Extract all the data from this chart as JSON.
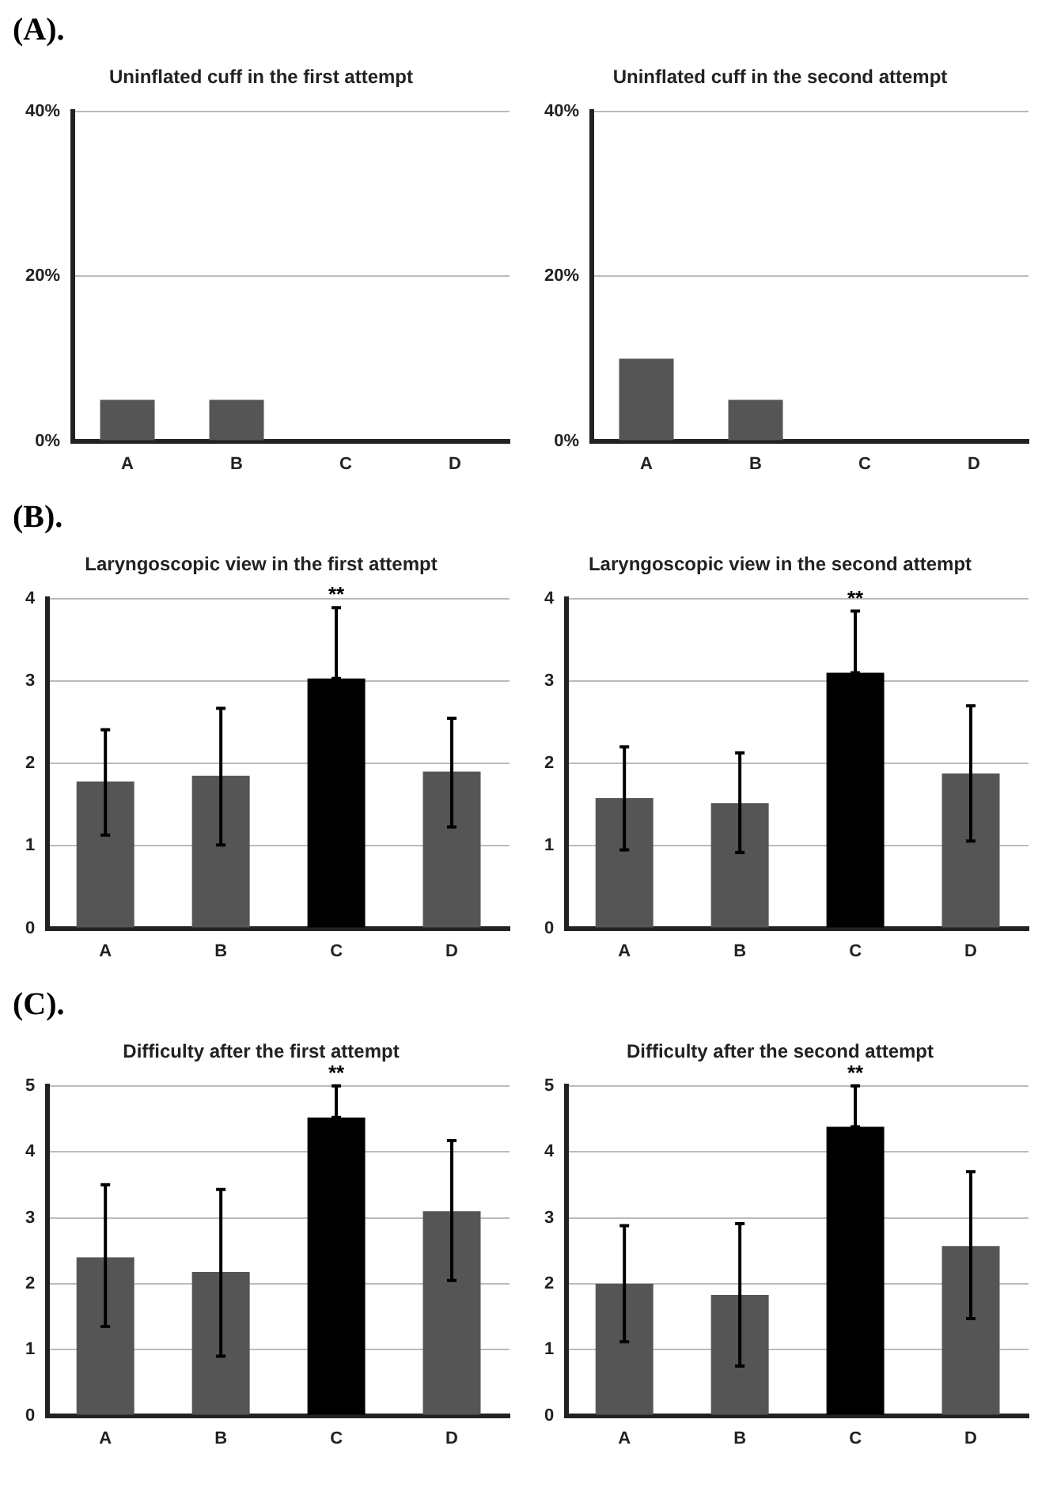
{
  "chart_data": [
    {
      "type": "bar",
      "title": "Uninflated cuff in the first attempt",
      "annotations": [
        "(A)."
      ],
      "categories": [
        "A",
        "B",
        "C",
        "D"
      ],
      "values": [
        5,
        5,
        0,
        0
      ],
      "color": "#555555",
      "ylim": [
        0,
        40
      ],
      "yticks": [
        {
          "value": 0,
          "label": "0%"
        },
        {
          "value": 20,
          "label": "20%"
        },
        {
          "value": 40,
          "label": "40%"
        }
      ],
      "grid": "y"
    },
    {
      "type": "bar",
      "title": "Uninflated cuff in the second attempt",
      "categories": [
        "A",
        "B",
        "C",
        "D"
      ],
      "values": [
        10,
        5,
        0,
        0
      ],
      "color": "#555555",
      "ylim": [
        0,
        40
      ],
      "yticks": [
        {
          "value": 0,
          "label": "0%"
        },
        {
          "value": 20,
          "label": "20%"
        },
        {
          "value": 40,
          "label": "40%"
        }
      ],
      "grid": "y"
    },
    {
      "type": "bar",
      "title": "Laryngoscopic view in the first attempt",
      "annotations": [
        "(B).",
        {
          "text": "**",
          "x": "C",
          "y": 3.89
        }
      ],
      "categories": [
        "A",
        "B",
        "C",
        "D"
      ],
      "values": [
        1.78,
        1.85,
        3.03,
        1.9
      ],
      "colors": [
        "#555555",
        "#555555",
        "#000000",
        "#555555"
      ],
      "errors": [
        [
          1.13,
          2.41
        ],
        [
          1.01,
          2.67
        ],
        [
          3.03,
          3.89
        ],
        [
          1.23,
          2.55
        ]
      ],
      "ylim": [
        0,
        4
      ],
      "yticks": [
        0,
        1,
        2,
        3,
        4
      ],
      "grid": "y"
    },
    {
      "type": "bar",
      "title": "Laryngoscopic view in the second attempt",
      "annotations": [
        {
          "text": "**",
          "x": "C",
          "y": 3.85
        }
      ],
      "categories": [
        "A",
        "B",
        "C",
        "D"
      ],
      "values": [
        1.58,
        1.52,
        3.1,
        1.88
      ],
      "colors": [
        "#555555",
        "#555555",
        "#000000",
        "#555555"
      ],
      "errors": [
        [
          0.95,
          2.2
        ],
        [
          0.92,
          2.13
        ],
        [
          3.1,
          3.85
        ],
        [
          1.06,
          2.7
        ]
      ],
      "ylim": [
        0,
        4
      ],
      "yticks": [
        0,
        1,
        2,
        3,
        4
      ],
      "grid": "y"
    },
    {
      "type": "bar",
      "title": "Difficulty after the first attempt",
      "annotations": [
        "(C).",
        {
          "text": "**",
          "x": "C",
          "y": 5
        }
      ],
      "categories": [
        "A",
        "B",
        "C",
        "D"
      ],
      "values": [
        2.4,
        2.18,
        4.52,
        3.1
      ],
      "colors": [
        "#555555",
        "#555555",
        "#000000",
        "#555555"
      ],
      "errors": [
        [
          1.35,
          3.5
        ],
        [
          0.9,
          3.43
        ],
        [
          4.52,
          5
        ],
        [
          2.05,
          4.17
        ]
      ],
      "ylim": [
        0,
        5
      ],
      "yticks": [
        0,
        1,
        2,
        3,
        4,
        5
      ],
      "grid": "y"
    },
    {
      "type": "bar",
      "title": "Difficulty after the second attempt",
      "annotations": [
        {
          "text": "**",
          "x": "C",
          "y": 5
        }
      ],
      "categories": [
        "A",
        "B",
        "C",
        "D"
      ],
      "values": [
        2.0,
        1.83,
        4.38,
        2.57
      ],
      "colors": [
        "#555555",
        "#555555",
        "#000000",
        "#555555"
      ],
      "errors": [
        [
          1.12,
          2.88
        ],
        [
          0.75,
          2.91
        ],
        [
          4.38,
          5
        ],
        [
          1.47,
          3.7
        ]
      ],
      "ylim": [
        0,
        5
      ],
      "yticks": [
        0,
        1,
        2,
        3,
        4,
        5
      ],
      "grid": "y"
    }
  ]
}
